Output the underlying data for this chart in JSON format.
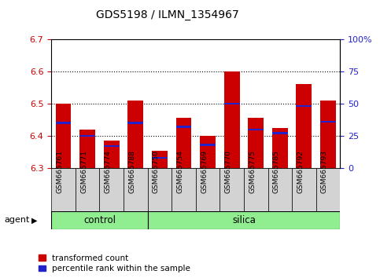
{
  "title": "GDS5198 / ILMN_1354967",
  "samples": [
    "GSM665761",
    "GSM665771",
    "GSM665774",
    "GSM665788",
    "GSM665750",
    "GSM665754",
    "GSM665769",
    "GSM665770",
    "GSM665775",
    "GSM665785",
    "GSM665792",
    "GSM665793"
  ],
  "groups": [
    "control",
    "control",
    "control",
    "control",
    "silica",
    "silica",
    "silica",
    "silica",
    "silica",
    "silica",
    "silica",
    "silica"
  ],
  "transformed_count": [
    6.5,
    6.42,
    6.385,
    6.51,
    6.355,
    6.455,
    6.4,
    6.6,
    6.455,
    6.425,
    6.56,
    6.51
  ],
  "percentile_rank": [
    35,
    25,
    17,
    35,
    8,
    32,
    18,
    50,
    30,
    27,
    48,
    36
  ],
  "ymin": 6.3,
  "ymax": 6.7,
  "pmin": 0,
  "pmax": 100,
  "bar_color": "#CC0000",
  "blue_color": "#2222CC",
  "plot_bg": "#FFFFFF",
  "left_tick_color": "#CC0000",
  "right_tick_color": "#2222CC",
  "legend_items": [
    "transformed count",
    "percentile rank within the sample"
  ],
  "xlabel_agent": "agent",
  "yticks_left": [
    6.3,
    6.4,
    6.5,
    6.6,
    6.7
  ],
  "yticks_right": [
    0,
    25,
    50,
    75,
    100
  ],
  "bar_width": 0.65,
  "blue_bar_height": 0.006
}
